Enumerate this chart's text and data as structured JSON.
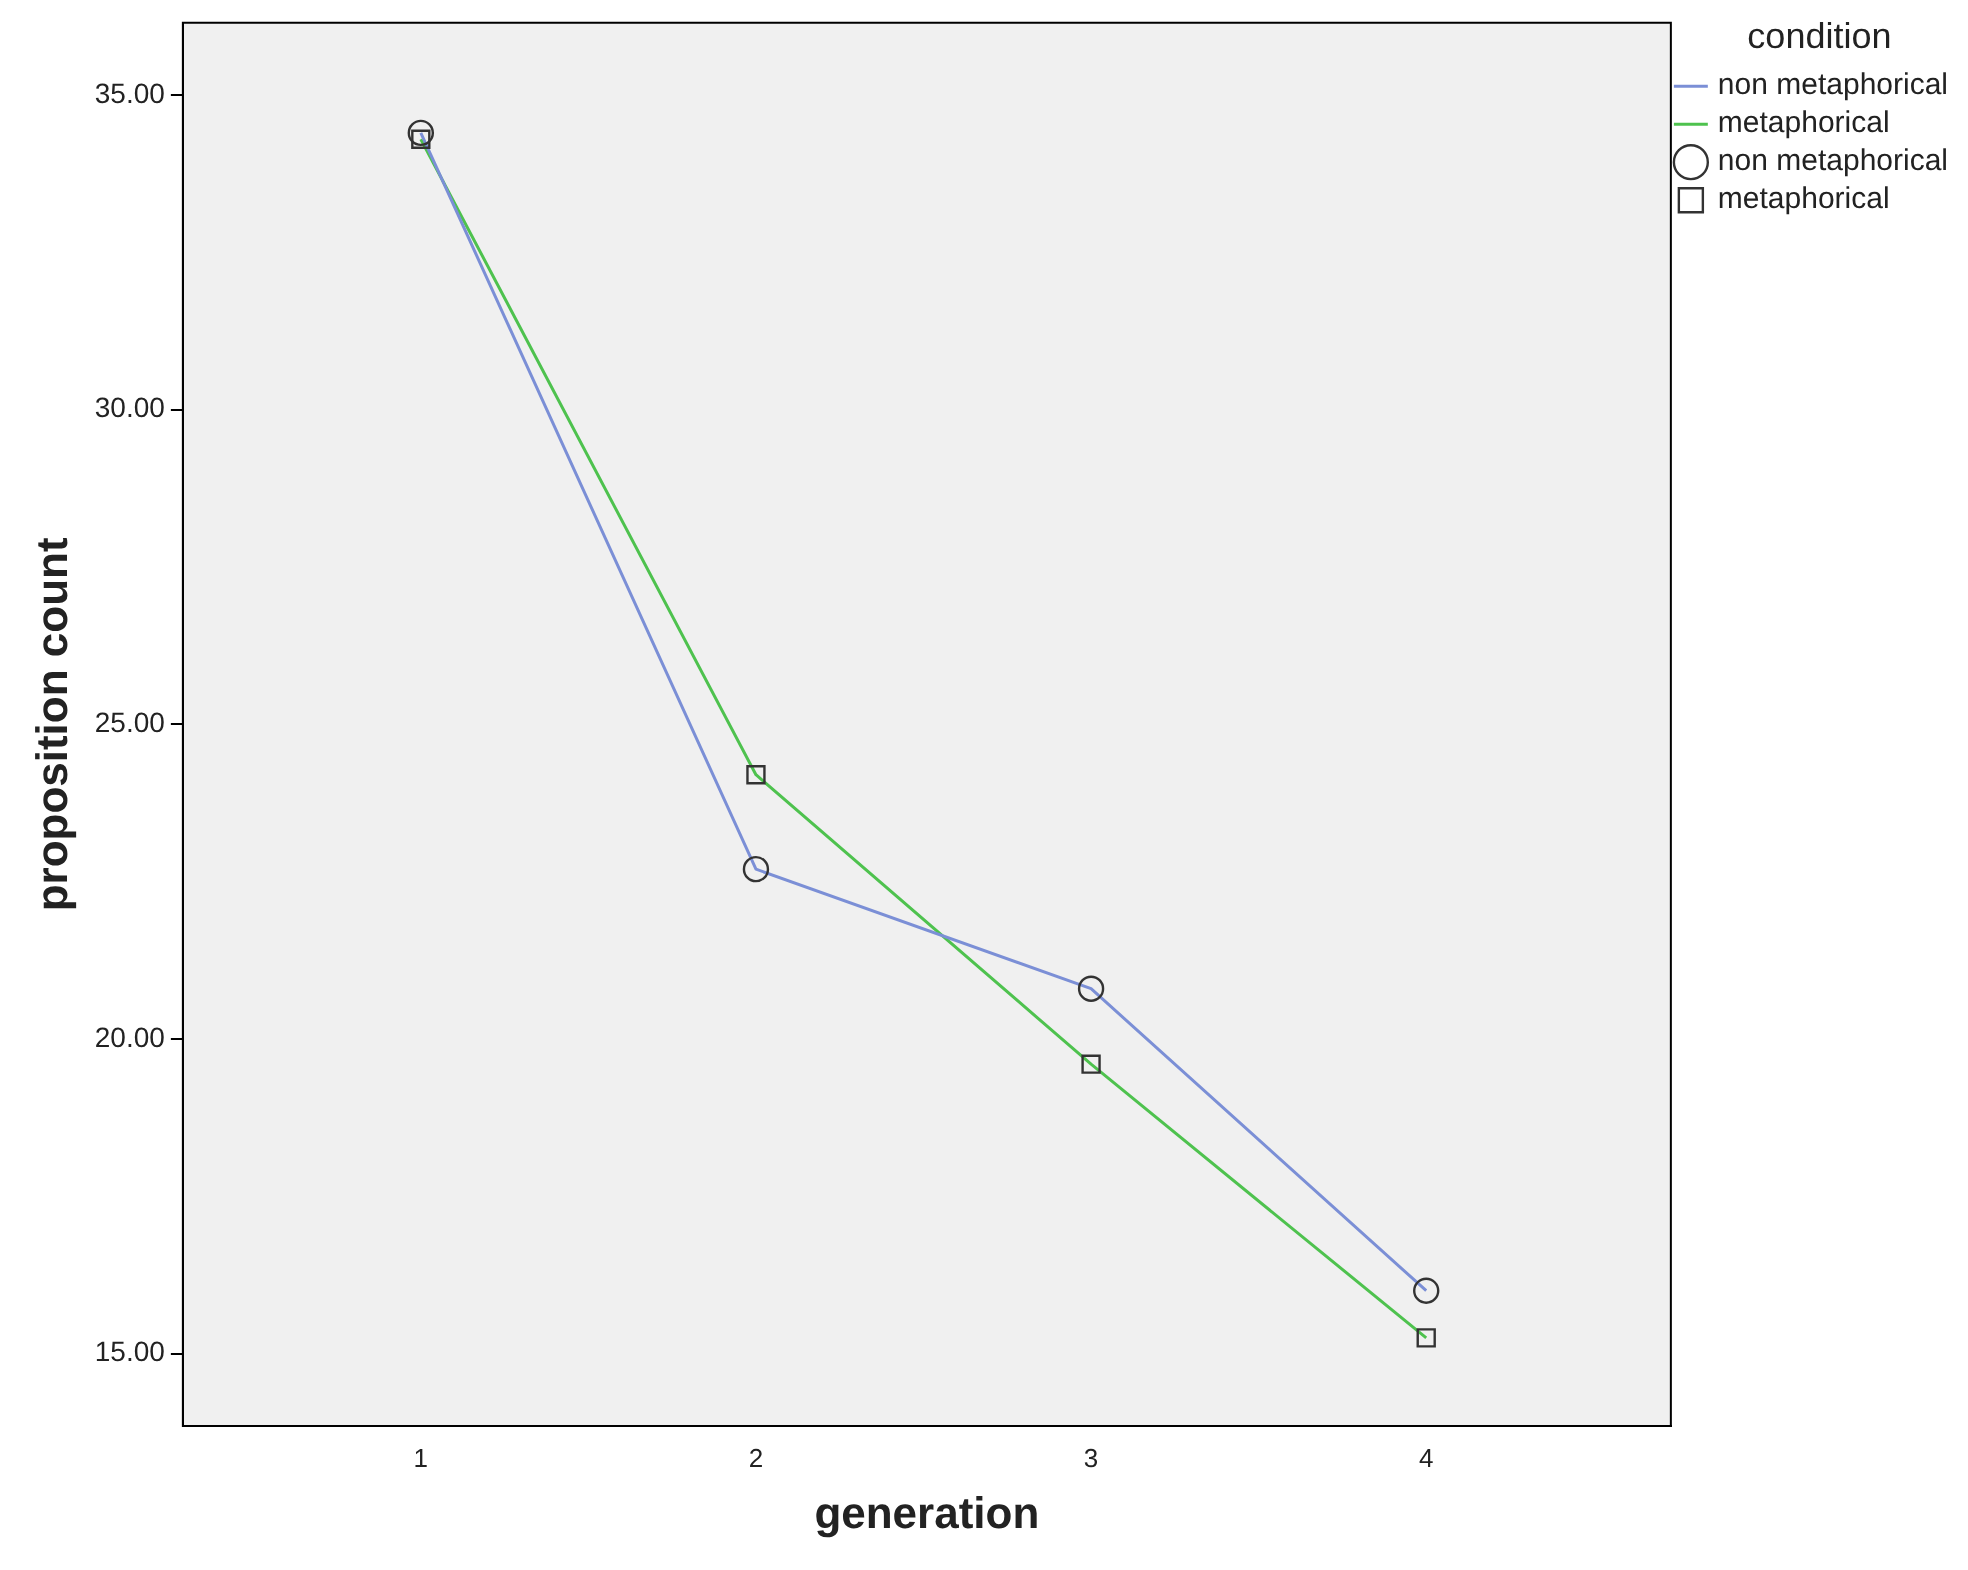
{
  "chart_data": {
    "type": "line",
    "xlabel": "generation",
    "ylabel": "proposition count",
    "legend_title": "condition",
    "legend": "right",
    "grid": false,
    "xlim": [
      0.29,
      4.73
    ],
    "xticks": [
      1,
      2,
      3,
      4
    ],
    "ylim": [
      13.85,
      36.15
    ],
    "yticks": [
      {
        "value": 15,
        "label": "15.00"
      },
      {
        "value": 20,
        "label": "20.00"
      },
      {
        "value": 25,
        "label": "25.00"
      },
      {
        "value": 30,
        "label": "30.00"
      },
      {
        "value": 35,
        "label": "35.00"
      }
    ],
    "x": [
      1,
      2,
      3,
      4
    ],
    "series": [
      {
        "name": "non metaphorical",
        "marker": "none",
        "color": "#7b8fd6",
        "values": [
          34.4,
          22.7,
          20.8,
          16.0
        ]
      },
      {
        "name": "metaphorical",
        "marker": "none",
        "color": "#4ec24e",
        "values": [
          34.3,
          24.2,
          19.6,
          15.25
        ]
      },
      {
        "name": "non metaphorical",
        "type": "scatter",
        "marker": "circle",
        "color": "#333333",
        "values": [
          34.4,
          22.7,
          20.8,
          16.0
        ]
      },
      {
        "name": "metaphorical",
        "type": "scatter",
        "marker": "square",
        "color": "#333333",
        "values": [
          34.3,
          24.2,
          19.6,
          15.25
        ]
      }
    ]
  }
}
